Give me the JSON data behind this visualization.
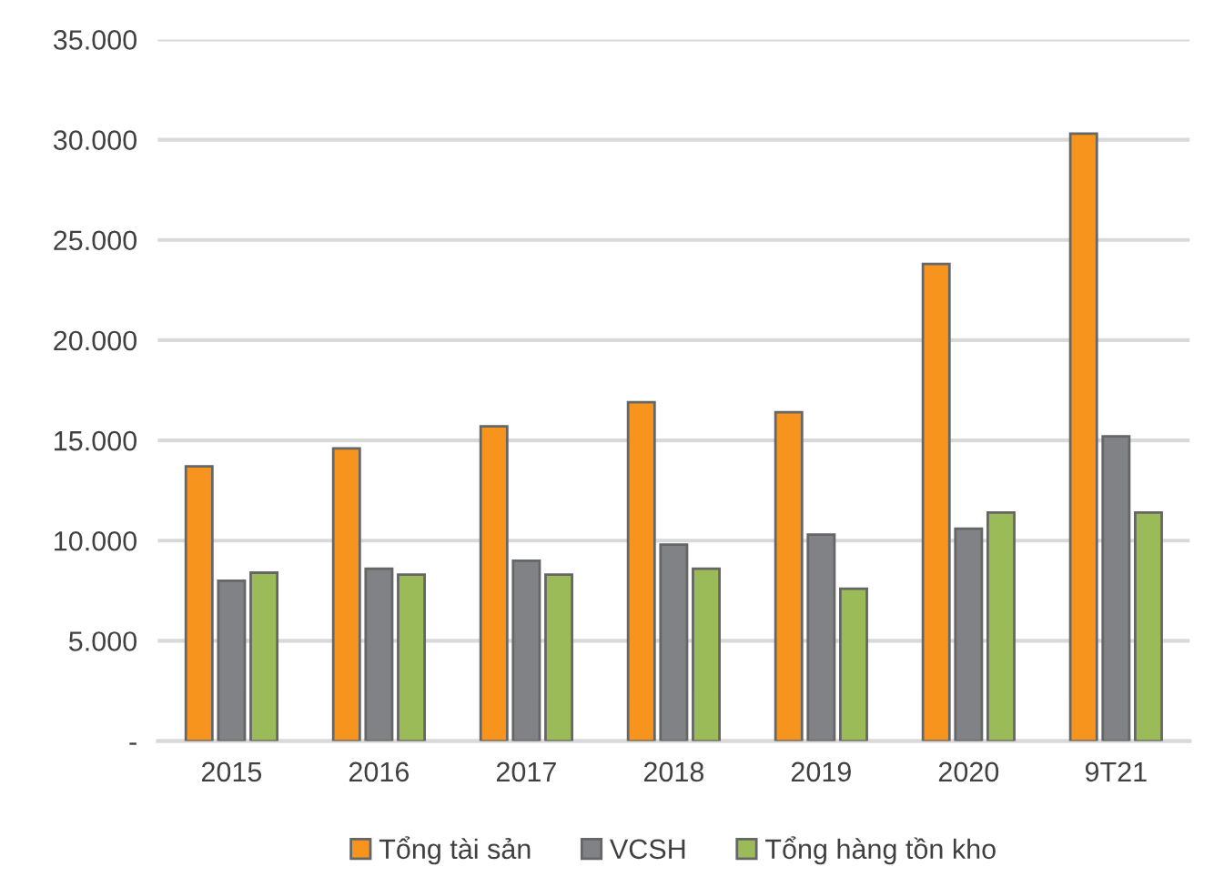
{
  "chart_data": {
    "type": "bar",
    "categories": [
      "2015",
      "2016",
      "2017",
      "2018",
      "2019",
      "2020",
      "9T21"
    ],
    "series": [
      {
        "name": "Tổng tài sản",
        "color": "#f7941d",
        "values": [
          13700,
          14600,
          15700,
          16900,
          16400,
          23800,
          30300
        ]
      },
      {
        "name": "VCSH",
        "color": "#808285",
        "values": [
          8000,
          8600,
          9000,
          9800,
          10300,
          10600,
          15200
        ]
      },
      {
        "name": "Tổng hàng tồn kho",
        "color": "#9bbb59",
        "values": [
          8400,
          8300,
          8300,
          8600,
          7600,
          11400,
          11400
        ]
      }
    ],
    "ylim": [
      0,
      35000
    ],
    "yticks": [
      {
        "value": 0,
        "label": "-"
      },
      {
        "value": 5000,
        "label": "5.000"
      },
      {
        "value": 10000,
        "label": "10.000"
      },
      {
        "value": 15000,
        "label": "15.000"
      },
      {
        "value": 20000,
        "label": "20.000"
      },
      {
        "value": 25000,
        "label": "25.000"
      },
      {
        "value": 30000,
        "label": "30.000"
      },
      {
        "value": 35000,
        "label": "35.000"
      }
    ],
    "grid": "y",
    "legend": "bottom"
  }
}
